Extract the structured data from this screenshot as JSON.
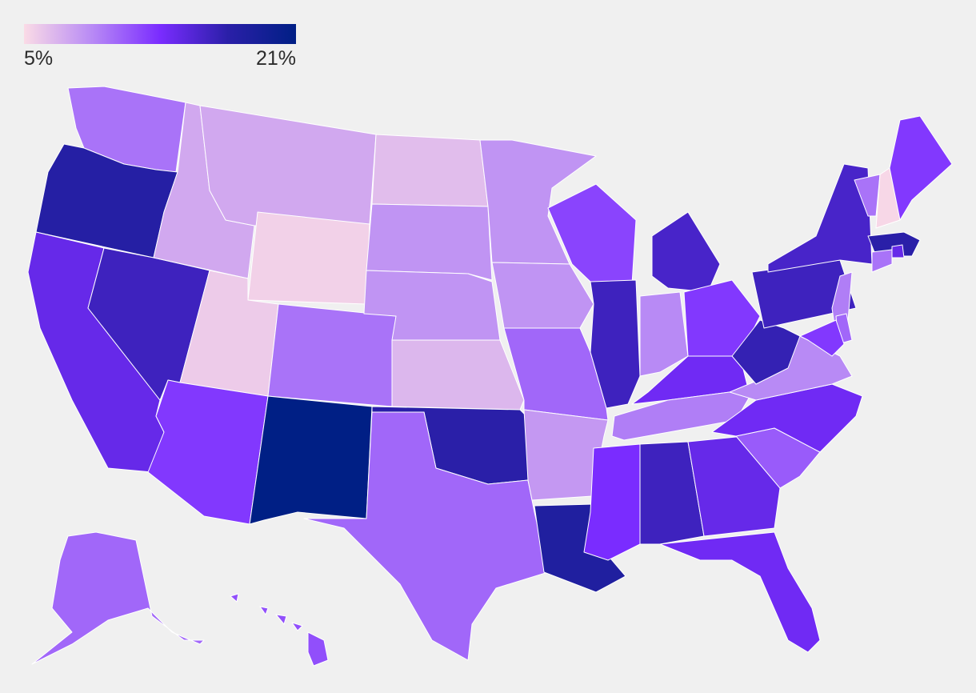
{
  "legend": {
    "min_label": "5%",
    "max_label": "21%",
    "min_value": 5,
    "max_value": 21,
    "gradient_colors": [
      "#fadbe6",
      "#b88af5",
      "#7a2cff",
      "#2a1fa8",
      "#001f85"
    ]
  },
  "map": {
    "states": [
      {
        "id": "WA",
        "value": 10.0
      },
      {
        "id": "OR",
        "value": 17.5
      },
      {
        "id": "CA",
        "value": 14.0
      },
      {
        "id": "NV",
        "value": 16.0
      },
      {
        "id": "ID",
        "value": 7.5
      },
      {
        "id": "MT",
        "value": 7.5
      },
      {
        "id": "WY",
        "value": 5.5
      },
      {
        "id": "UT",
        "value": 5.8
      },
      {
        "id": "CO",
        "value": 10.0
      },
      {
        "id": "AZ",
        "value": 12.5
      },
      {
        "id": "NM",
        "value": 21.0
      },
      {
        "id": "ND",
        "value": 6.5
      },
      {
        "id": "SD",
        "value": 8.5
      },
      {
        "id": "NE",
        "value": 8.5
      },
      {
        "id": "KS",
        "value": 6.8
      },
      {
        "id": "OK",
        "value": 17.0
      },
      {
        "id": "TX",
        "value": 10.5
      },
      {
        "id": "MN",
        "value": 8.5
      },
      {
        "id": "IA",
        "value": 8.5
      },
      {
        "id": "MO",
        "value": 10.5
      },
      {
        "id": "AR",
        "value": 8.3
      },
      {
        "id": "LA",
        "value": 18.0
      },
      {
        "id": "WI",
        "value": 12.0
      },
      {
        "id": "IL",
        "value": 16.0
      },
      {
        "id": "MI",
        "value": 15.5
      },
      {
        "id": "IN",
        "value": 9.0
      },
      {
        "id": "OH",
        "value": 12.5
      },
      {
        "id": "KY",
        "value": 13.5
      },
      {
        "id": "TN",
        "value": 9.5
      },
      {
        "id": "MS",
        "value": 13.0
      },
      {
        "id": "AL",
        "value": 16.0
      },
      {
        "id": "GA",
        "value": 14.0
      },
      {
        "id": "FL",
        "value": 13.5
      },
      {
        "id": "SC",
        "value": 11.0
      },
      {
        "id": "NC",
        "value": 13.5
      },
      {
        "id": "VA",
        "value": 9.0
      },
      {
        "id": "WV",
        "value": 16.5
      },
      {
        "id": "PA",
        "value": 16.0
      },
      {
        "id": "NY",
        "value": 15.5
      },
      {
        "id": "VT",
        "value": 10.0
      },
      {
        "id": "NH",
        "value": 5.2
      },
      {
        "id": "ME",
        "value": 12.5
      },
      {
        "id": "MA",
        "value": 17.0
      },
      {
        "id": "RI",
        "value": 14.0
      },
      {
        "id": "CT",
        "value": 10.0
      },
      {
        "id": "NJ",
        "value": 9.5
      },
      {
        "id": "DE",
        "value": 10.5
      },
      {
        "id": "MD",
        "value": 12.5
      },
      {
        "id": "AK",
        "value": 10.5
      },
      {
        "id": "HI",
        "value": 11.5
      }
    ]
  }
}
